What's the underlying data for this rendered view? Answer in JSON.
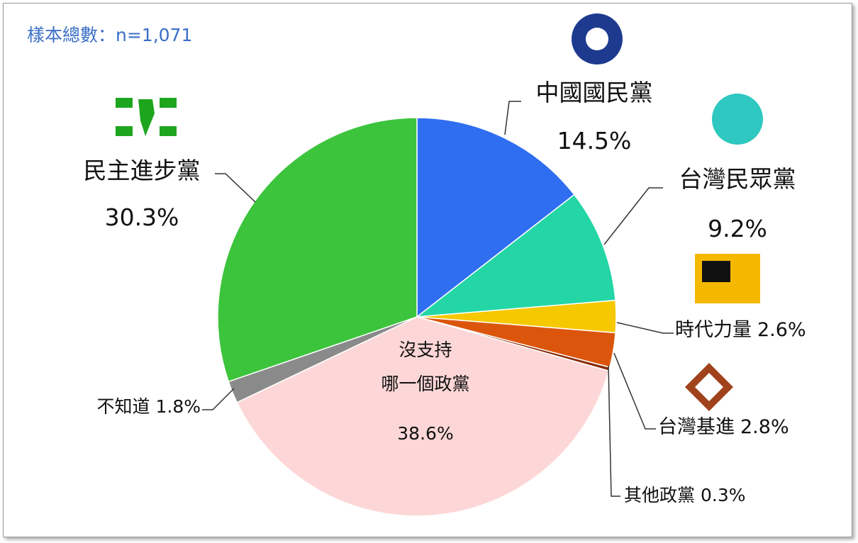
{
  "chart_data": {
    "type": "pie",
    "subtitle": "樣本總數：n=1,071",
    "categories": [
      "中國國民黨",
      "台灣民眾黨",
      "時代力量",
      "台灣基進",
      "其他政黨",
      "沒支持\n哪一個政黨",
      "不知道",
      "民主進步黨"
    ],
    "values": [
      14.5,
      9.2,
      2.6,
      2.8,
      0.3,
      38.6,
      1.8,
      30.3
    ],
    "value_labels": [
      "14.5%",
      "9.2%",
      "2.6%",
      "2.8%",
      "0.3%",
      "38.6%",
      "1.8%",
      "30.3%"
    ],
    "colors": [
      "#2f6ef0",
      "#24d6a6",
      "#f6c800",
      "#db560c",
      "#8a2c06",
      "#fdd7d7",
      "#8a8a8a",
      "#3cc43c"
    ]
  }
}
